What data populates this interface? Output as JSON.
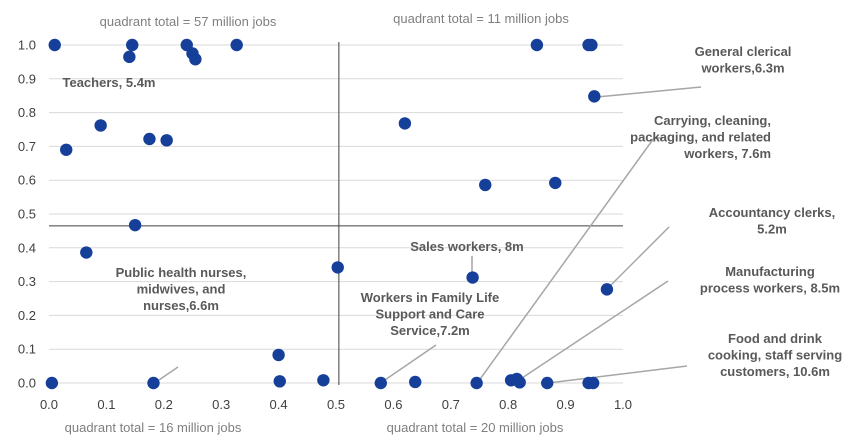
{
  "chart_data": {
    "type": "scatter",
    "title": "",
    "xlabel": "",
    "ylabel": "",
    "xlim": [
      0,
      1
    ],
    "ylim": [
      0,
      1
    ],
    "x_ticks": [
      "0.0",
      "0.1",
      "0.2",
      "0.3",
      "0.4",
      "0.5",
      "0.6",
      "0.7",
      "0.8",
      "0.9",
      "1.0"
    ],
    "y_ticks": [
      "0.0",
      "0.1",
      "0.2",
      "0.3",
      "0.4",
      "0.5",
      "0.6",
      "0.7",
      "0.8",
      "0.9",
      "1.0"
    ],
    "grid": "horizontal",
    "divider_x": 0.505,
    "divider_y": 0.465,
    "quadrant_totals": {
      "top_left": "quadrant total = 57 million jobs",
      "top_right": "quadrant total = 11 million jobs",
      "bottom_left": "quadrant total = 16 million jobs",
      "bottom_right": "quadrant total = 20 million jobs"
    },
    "points": [
      {
        "x": 0.01,
        "y": 1.0
      },
      {
        "x": 0.145,
        "y": 1.0
      },
      {
        "x": 0.24,
        "y": 1.0
      },
      {
        "x": 0.25,
        "y": 0.975
      },
      {
        "x": 0.14,
        "y": 0.965
      },
      {
        "x": 0.255,
        "y": 0.958
      },
      {
        "x": 0.327,
        "y": 1.0
      },
      {
        "x": 0.85,
        "y": 1.0
      },
      {
        "x": 0.94,
        "y": 1.0
      },
      {
        "x": 0.945,
        "y": 1.0
      },
      {
        "x": 0.95,
        "y": 0.848
      },
      {
        "x": 0.03,
        "y": 0.69
      },
      {
        "x": 0.09,
        "y": 0.762
      },
      {
        "x": 0.175,
        "y": 0.722
      },
      {
        "x": 0.205,
        "y": 0.718
      },
      {
        "x": 0.62,
        "y": 0.768
      },
      {
        "x": 0.76,
        "y": 0.586
      },
      {
        "x": 0.882,
        "y": 0.592
      },
      {
        "x": 0.15,
        "y": 0.467
      },
      {
        "x": 0.065,
        "y": 0.386
      },
      {
        "x": 0.503,
        "y": 0.342
      },
      {
        "x": 0.738,
        "y": 0.312
      },
      {
        "x": 0.972,
        "y": 0.277
      },
      {
        "x": 0.4,
        "y": 0.083
      },
      {
        "x": 0.005,
        "y": 0.0
      },
      {
        "x": 0.182,
        "y": 0.0
      },
      {
        "x": 0.402,
        "y": 0.005
      },
      {
        "x": 0.478,
        "y": 0.008
      },
      {
        "x": 0.578,
        "y": 0.0
      },
      {
        "x": 0.638,
        "y": 0.003
      },
      {
        "x": 0.745,
        "y": 0.0
      },
      {
        "x": 0.805,
        "y": 0.008
      },
      {
        "x": 0.815,
        "y": 0.012
      },
      {
        "x": 0.82,
        "y": 0.002
      },
      {
        "x": 0.868,
        "y": 0.0
      },
      {
        "x": 0.94,
        "y": 0.0
      },
      {
        "x": 0.948,
        "y": 0.0
      }
    ],
    "annotations": [
      {
        "lines": [
          "Teachers, 5.4m"
        ]
      },
      {
        "lines": [
          "General clerical",
          "workers,6.3m"
        ]
      },
      {
        "lines": [
          "Carrying, cleaning,",
          "packaging, and related",
          "workers, 7.6m"
        ]
      },
      {
        "lines": [
          "Accountancy clerks,",
          "5.2m"
        ]
      },
      {
        "lines": [
          "Sales workers, 8m"
        ]
      },
      {
        "lines": [
          "Manufacturing",
          "process workers, 8.5m"
        ]
      },
      {
        "lines": [
          "Workers in Family Life",
          "Support and Care",
          "Service,7.2m"
        ]
      },
      {
        "lines": [
          "Public health nurses,",
          "midwives, and",
          "nurses,6.6m"
        ]
      },
      {
        "lines": [
          "Food and drink",
          "cooking, staff serving",
          "customers, 10.6m"
        ]
      }
    ]
  }
}
